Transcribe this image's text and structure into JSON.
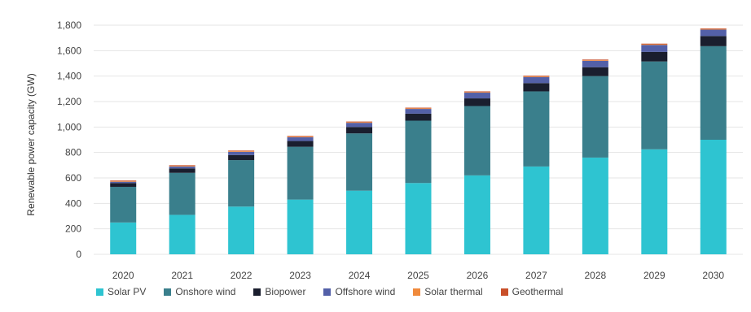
{
  "chart_data": {
    "type": "bar",
    "stacked": true,
    "title": "",
    "xlabel": "",
    "ylabel": "Renewable power capacity (GW)",
    "ylim": [
      0,
      1800
    ],
    "yticks": [
      0,
      200,
      400,
      600,
      800,
      1000,
      1200,
      1400,
      1600,
      1800
    ],
    "ytick_labels": [
      "0",
      "200",
      "400",
      "600",
      "800",
      "1,000",
      "1,200",
      "1,400",
      "1,600",
      "1,800"
    ],
    "grid": true,
    "legend_position": "bottom",
    "categories": [
      "2020",
      "2021",
      "2022",
      "2023",
      "2024",
      "2025",
      "2026",
      "2027",
      "2028",
      "2029",
      "2030"
    ],
    "series": [
      {
        "name": "Solar PV",
        "color": "#2ec4d1",
        "values": [
          250,
          310,
          375,
          430,
          500,
          560,
          620,
          690,
          760,
          825,
          900
        ]
      },
      {
        "name": "Onshore wind",
        "color": "#3a7f8c",
        "values": [
          280,
          330,
          365,
          415,
          450,
          490,
          545,
          590,
          640,
          690,
          735
        ]
      },
      {
        "name": "Biopower",
        "color": "#1a1e2e",
        "values": [
          30,
          35,
          40,
          45,
          50,
          55,
          60,
          65,
          70,
          75,
          80
        ]
      },
      {
        "name": "Offshore wind",
        "color": "#5360a8",
        "values": [
          10,
          15,
          25,
          30,
          33,
          37,
          45,
          48,
          50,
          55,
          50
        ]
      },
      {
        "name": "Solar thermal",
        "color": "#f08a3c",
        "values": [
          5,
          5,
          5,
          5,
          5,
          5,
          5,
          5,
          5,
          5,
          5
        ]
      },
      {
        "name": "Geothermal",
        "color": "#c9502a",
        "values": [
          5,
          5,
          5,
          5,
          5,
          5,
          5,
          5,
          5,
          5,
          5
        ]
      }
    ]
  }
}
